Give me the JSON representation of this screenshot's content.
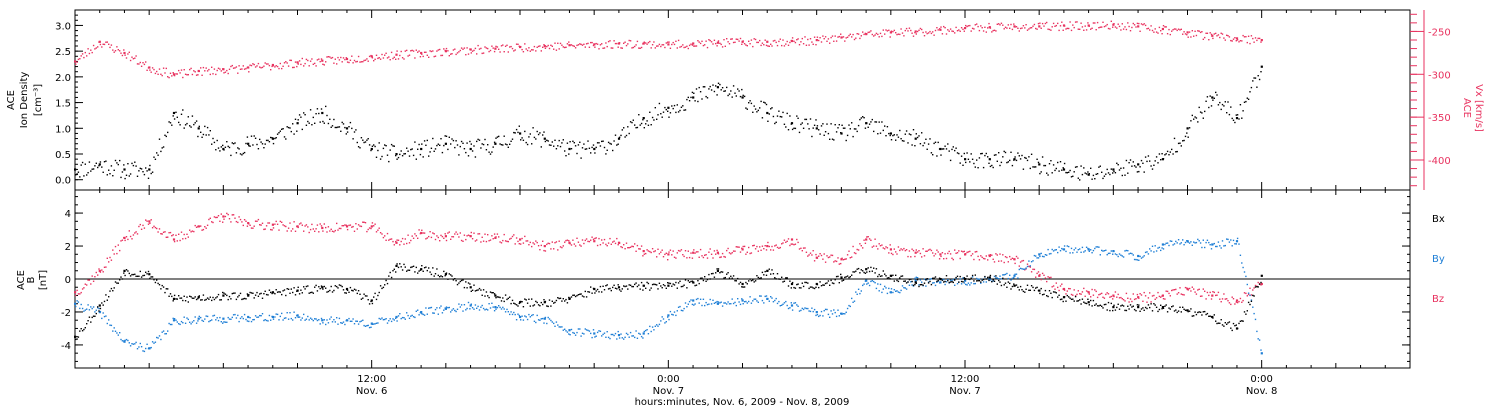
{
  "colors": {
    "axis": "#000000",
    "red": "#e8325f",
    "blue": "#1f7fd6",
    "black": "#000000"
  },
  "xaxis": {
    "label": "hours:minutes, Nov.  6, 2009 - Nov.  8, 2009",
    "range_hours": [
      0,
      54
    ],
    "major_ticks": [
      {
        "hour": 12,
        "time": "12:00",
        "date": "Nov. 6"
      },
      {
        "hour": 24,
        "time": "0:00",
        "date": "Nov. 7"
      },
      {
        "hour": 36,
        "time": "12:00",
        "date": "Nov. 7"
      },
      {
        "hour": 48,
        "time": "0:00",
        "date": "Nov. 8"
      }
    ]
  },
  "panel1": {
    "ylabel_left": [
      "ACE",
      "Ion Density",
      "[cm⁻³]"
    ],
    "ylabel_right": [
      "ACE",
      "Vx [km/s]"
    ],
    "left_ticks": [
      "0.0",
      "0.5",
      "1.0",
      "1.5",
      "2.0",
      "2.5",
      "3.0"
    ],
    "right_ticks": [
      "-250",
      "-300",
      "-350",
      "-400"
    ]
  },
  "panel2": {
    "ylabel": [
      "ACE",
      "B",
      "[nT]"
    ],
    "ticks": [
      "4",
      "2",
      "0",
      "-2",
      "-4"
    ],
    "legend": [
      "Bx",
      "By",
      "Bz"
    ]
  },
  "chart_data": [
    {
      "type": "scatter",
      "x_unit": "hours since Nov. 6, 2009 0:00",
      "xlim": [
        0,
        54
      ],
      "ylim_left": [
        -0.2,
        3.3
      ],
      "ylim_right": [
        -435,
        -225
      ],
      "series": [
        {
          "name": "Ion Density",
          "axis": "left",
          "color": "#000000",
          "x": [
            0,
            1,
            2,
            3,
            4,
            5,
            6,
            7,
            8,
            9,
            10,
            11,
            12,
            13,
            14,
            15,
            16,
            17,
            18,
            19,
            20,
            21,
            22,
            23,
            24,
            25,
            26,
            27,
            28,
            29,
            30,
            31,
            32,
            33,
            34,
            35,
            36,
            37,
            38,
            39,
            40,
            41,
            42,
            43,
            44,
            45,
            46,
            47,
            48
          ],
          "y": [
            0.2,
            0.3,
            0.2,
            0.2,
            1.3,
            1.0,
            0.6,
            0.7,
            0.8,
            1.1,
            1.3,
            1.0,
            0.6,
            0.5,
            0.6,
            0.7,
            0.6,
            0.7,
            0.9,
            0.8,
            0.6,
            0.6,
            0.8,
            1.2,
            1.4,
            1.6,
            1.8,
            1.6,
            1.3,
            1.1,
            1.0,
            0.9,
            1.1,
            0.9,
            0.8,
            0.6,
            0.4,
            0.4,
            0.4,
            0.3,
            0.2,
            0.1,
            0.2,
            0.3,
            0.4,
            1.0,
            1.6,
            1.2,
            2.2
          ]
        },
        {
          "name": "Vx",
          "axis": "right",
          "color": "#e8325f",
          "x": [
            0,
            1,
            2,
            3,
            4,
            5,
            6,
            7,
            8,
            9,
            10,
            11,
            12,
            13,
            14,
            15,
            16,
            17,
            18,
            19,
            20,
            21,
            22,
            23,
            24,
            25,
            26,
            27,
            28,
            29,
            30,
            31,
            32,
            33,
            34,
            35,
            36,
            37,
            38,
            39,
            40,
            41,
            42,
            43,
            44,
            45,
            46,
            47,
            48
          ],
          "y": [
            -285,
            -262,
            -275,
            -292,
            -300,
            -296,
            -294,
            -292,
            -289,
            -286,
            -284,
            -282,
            -279,
            -277,
            -275,
            -273,
            -271,
            -270,
            -268,
            -267,
            -266,
            -265,
            -264,
            -264,
            -265,
            -264,
            -263,
            -262,
            -262,
            -261,
            -260,
            -257,
            -253,
            -251,
            -250,
            -248,
            -246,
            -245,
            -244,
            -244,
            -243,
            -243,
            -242,
            -244,
            -247,
            -251,
            -255,
            -258,
            -260
          ]
        }
      ]
    },
    {
      "type": "scatter",
      "x_unit": "hours since Nov. 6, 2009 0:00",
      "xlim": [
        0,
        54
      ],
      "ylim": [
        -5.4,
        5.4
      ],
      "series": [
        {
          "name": "Bx",
          "color": "#000000",
          "x": [
            0,
            1,
            2,
            3,
            4,
            5,
            6,
            7,
            8,
            9,
            10,
            11,
            12,
            13,
            14,
            15,
            16,
            17,
            18,
            19,
            20,
            21,
            22,
            23,
            24,
            25,
            26,
            27,
            28,
            29,
            30,
            31,
            32,
            33,
            34,
            35,
            36,
            37,
            38,
            39,
            40,
            41,
            42,
            43,
            44,
            45,
            46,
            47,
            48
          ],
          "y": [
            -3.5,
            -1.6,
            0.5,
            0.3,
            -1.2,
            -1.1,
            -1.0,
            -1.0,
            -0.8,
            -0.7,
            -0.5,
            -0.6,
            -1.3,
            0.8,
            0.6,
            0.3,
            -0.5,
            -1.0,
            -1.4,
            -1.4,
            -1.2,
            -0.6,
            -0.5,
            -0.4,
            -0.4,
            -0.2,
            0.5,
            -0.3,
            0.5,
            -0.3,
            -0.3,
            0.1,
            0.6,
            0.2,
            -0.2,
            0.0,
            0.0,
            0.1,
            -0.4,
            -0.7,
            -1.1,
            -1.4,
            -1.7,
            -1.7,
            -1.7,
            -1.9,
            -2.3,
            -3.0,
            0.2
          ]
        },
        {
          "name": "By",
          "color": "#1f7fd6",
          "x": [
            0,
            1,
            2,
            3,
            4,
            5,
            6,
            7,
            8,
            9,
            10,
            11,
            12,
            13,
            14,
            15,
            16,
            17,
            18,
            19,
            20,
            21,
            22,
            23,
            24,
            25,
            26,
            27,
            28,
            29,
            30,
            31,
            32,
            33,
            34,
            35,
            36,
            37,
            38,
            39,
            40,
            41,
            42,
            43,
            44,
            45,
            46,
            47,
            48
          ],
          "y": [
            -1.5,
            -2.0,
            -3.8,
            -4.2,
            -2.5,
            -2.4,
            -2.4,
            -2.3,
            -2.3,
            -2.2,
            -2.5,
            -2.5,
            -2.7,
            -2.3,
            -2.0,
            -1.8,
            -1.6,
            -1.7,
            -2.3,
            -2.4,
            -3.1,
            -3.3,
            -3.4,
            -3.3,
            -2.2,
            -1.3,
            -1.5,
            -1.3,
            -1.2,
            -1.6,
            -2.0,
            -2.1,
            -0.1,
            -0.8,
            -0.1,
            -0.2,
            -0.1,
            0.0,
            0.2,
            1.5,
            1.8,
            1.8,
            1.7,
            1.4,
            2.1,
            2.3,
            2.1,
            2.3,
            -4.5
          ]
        },
        {
          "name": "Bz",
          "color": "#e8325f",
          "x": [
            0,
            1,
            2,
            3,
            4,
            5,
            6,
            7,
            8,
            9,
            10,
            11,
            12,
            13,
            14,
            15,
            16,
            17,
            18,
            19,
            20,
            21,
            22,
            23,
            24,
            25,
            26,
            27,
            28,
            29,
            30,
            31,
            32,
            33,
            34,
            35,
            36,
            37,
            38,
            39,
            40,
            41,
            42,
            43,
            44,
            45,
            46,
            47,
            48
          ],
          "y": [
            -0.8,
            0.5,
            2.5,
            3.5,
            2.4,
            3.2,
            3.8,
            3.4,
            3.3,
            3.2,
            3.1,
            3.2,
            3.2,
            2.2,
            2.8,
            2.6,
            2.6,
            2.5,
            2.4,
            2.0,
            2.2,
            2.3,
            2.2,
            1.7,
            1.5,
            1.6,
            1.6,
            1.8,
            2.0,
            2.4,
            1.3,
            1.2,
            2.4,
            1.8,
            1.6,
            1.5,
            1.5,
            1.4,
            1.2,
            0.2,
            -0.6,
            -0.8,
            -1.0,
            -1.1,
            -1.0,
            -0.6,
            -1.0,
            -1.3,
            -0.3
          ]
        }
      ]
    }
  ]
}
